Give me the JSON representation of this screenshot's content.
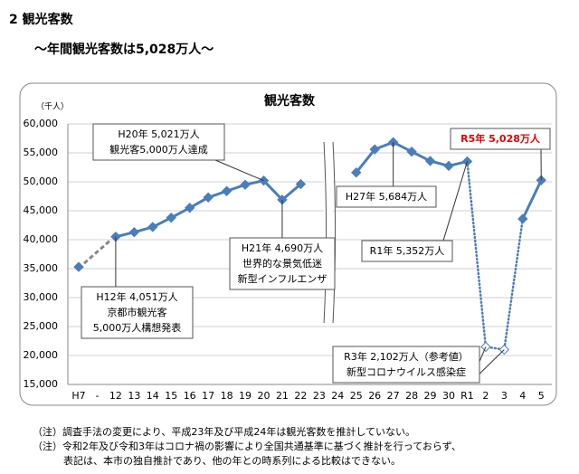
{
  "heading": "2 観光客数",
  "subheading": "～年間観光客数は5,028万人～",
  "chart_data": {
    "type": "line",
    "title": "観光客数",
    "y_label": "（千人）",
    "categories": [
      "H7",
      "-",
      "12",
      "13",
      "14",
      "15",
      "16",
      "17",
      "18",
      "19",
      "20",
      "21",
      "22",
      "23",
      "24",
      "25",
      "26",
      "27",
      "28",
      "29",
      "30",
      "R1",
      "2",
      "3",
      "4",
      "5"
    ],
    "series": [
      {
        "color": "#4a7ebb",
        "style": "solid",
        "values": [
          35300,
          null,
          40510,
          41300,
          42200,
          43800,
          45500,
          47300,
          48400,
          49500,
          50210,
          46900,
          49600,
          null,
          null,
          51600,
          55600,
          56840,
          55200,
          53600,
          52750,
          53520,
          null,
          null,
          43600,
          50280
        ]
      },
      {
        "color": "#4a7ebb",
        "style": "dotted",
        "values": [
          null,
          null,
          null,
          null,
          null,
          null,
          null,
          null,
          null,
          null,
          null,
          null,
          null,
          null,
          null,
          null,
          null,
          null,
          null,
          null,
          null,
          53520,
          21500,
          21020,
          43600,
          null
        ]
      }
    ],
    "ylim": [
      15000,
      60000
    ],
    "yticks": [
      {
        "value": 15000,
        "label": "15,000"
      },
      {
        "value": 20000,
        "label": "20,000"
      },
      {
        "value": 25000,
        "label": "25,000"
      },
      {
        "value": 30000,
        "label": "30,000"
      },
      {
        "value": 35000,
        "label": "35,000"
      },
      {
        "value": 40000,
        "label": "40,000"
      },
      {
        "value": 45000,
        "label": "45,000"
      },
      {
        "value": 50000,
        "label": "50,000"
      },
      {
        "value": 55000,
        "label": "55,000"
      },
      {
        "value": 60000,
        "label": "60,000"
      }
    ],
    "grid": true,
    "annotations": [
      {
        "lines": [
          "H20年 5,021万人",
          "観光客5,000万人達成"
        ]
      },
      {
        "lines": [
          "H21年 4,690万人",
          "世界的な景気低迷",
          "新型インフルエンザ"
        ]
      },
      {
        "lines": [
          "H12年 4,051万人",
          "京都市観光客",
          "5,000万人構想発表"
        ]
      },
      {
        "lines": [
          "H27年 5,684万人"
        ]
      },
      {
        "lines": [
          "R1年 5,352万人"
        ]
      },
      {
        "lines": [
          "R5年 5,028万人"
        ],
        "color": "#e00000"
      },
      {
        "lines": [
          "R3年 2,102万人（参考値）",
          "新型コロナウイルス感染症"
        ]
      }
    ]
  },
  "notes": [
    "（注）調査手法の変更により、平成23年及び平成24年は観光客数を推計していない。",
    "（注）令和2年及び令和3年はコロナ禍の影響により全国共通基準に基づく推計を行っておらず、",
    "表記は、本市の独自推計であり、他の年との時系列による比較はできない。"
  ]
}
